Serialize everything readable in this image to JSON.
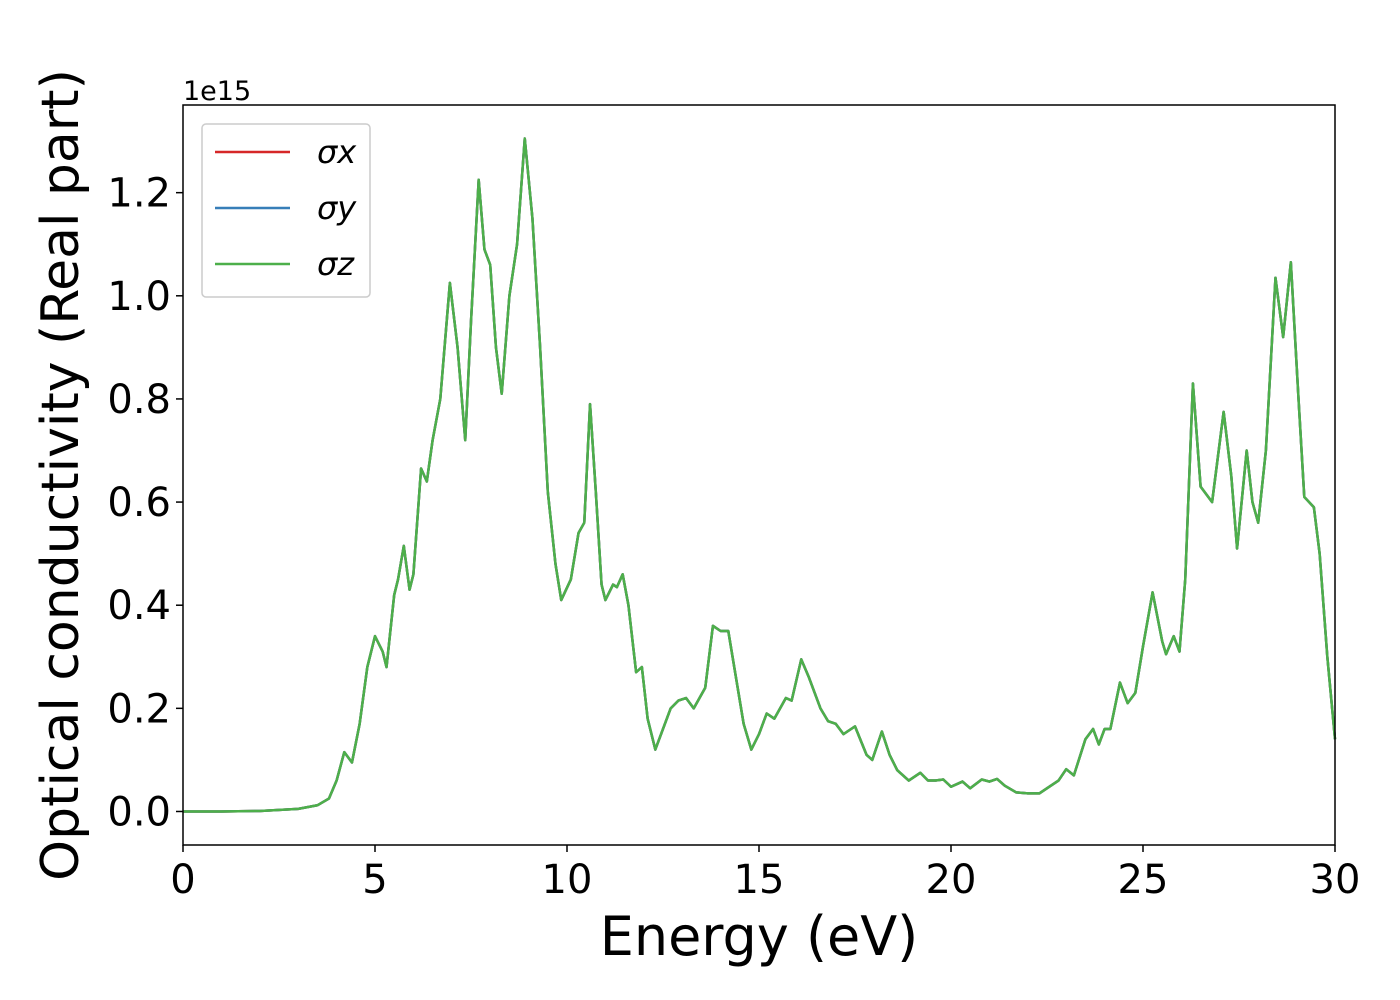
{
  "chart_data": {
    "type": "line",
    "xlabel": "Energy (eV)",
    "ylabel": "Optical conductivity (Real part)",
    "y_offset_label": "1e15",
    "xlim": [
      0,
      30
    ],
    "ylim": [
      -0.065,
      1.37
    ],
    "xticks": [
      0,
      5,
      10,
      15,
      20,
      25,
      30
    ],
    "yticks": [
      {
        "value": 0,
        "label": "0.0"
      },
      0.2,
      0.4,
      0.6,
      0.8,
      {
        "value": 1,
        "label": "1.0"
      },
      1.2
    ],
    "grid": false,
    "legend": "upper left",
    "x": [
      0,
      1,
      2,
      3,
      3.5,
      3.8,
      4.0,
      4.2,
      4.4,
      4.6,
      4.8,
      5.0,
      5.2,
      5.3,
      5.5,
      5.6,
      5.75,
      5.9,
      6.0,
      6.2,
      6.35,
      6.5,
      6.7,
      6.95,
      7.15,
      7.35,
      7.5,
      7.7,
      7.85,
      8.0,
      8.15,
      8.3,
      8.5,
      8.7,
      8.9,
      9.1,
      9.3,
      9.5,
      9.7,
      9.85,
      10.1,
      10.3,
      10.45,
      10.6,
      10.75,
      10.9,
      11.0,
      11.2,
      11.3,
      11.45,
      11.6,
      11.8,
      11.95,
      12.1,
      12.3,
      12.5,
      12.7,
      12.9,
      13.1,
      13.3,
      13.6,
      13.8,
      14.0,
      14.2,
      14.4,
      14.6,
      14.8,
      15.0,
      15.2,
      15.4,
      15.7,
      15.85,
      16.1,
      16.3,
      16.6,
      16.8,
      17.0,
      17.2,
      17.5,
      17.8,
      17.95,
      18.2,
      18.4,
      18.6,
      18.9,
      19.2,
      19.4,
      19.6,
      19.8,
      20.0,
      20.3,
      20.5,
      20.8,
      21.0,
      21.2,
      21.4,
      21.7,
      22.0,
      22.3,
      22.6,
      22.8,
      23.0,
      23.2,
      23.5,
      23.7,
      23.85,
      24.0,
      24.15,
      24.4,
      24.6,
      24.8,
      25.0,
      25.25,
      25.5,
      25.6,
      25.8,
      25.95,
      26.1,
      26.3,
      26.5,
      26.8,
      27.1,
      27.3,
      27.45,
      27.7,
      27.85,
      28.0,
      28.2,
      28.45,
      28.65,
      28.85,
      29.05,
      29.2,
      29.45,
      29.6,
      29.8,
      30.0
    ],
    "series": [
      {
        "name": "σx",
        "color": "#d62728",
        "values": [
          0,
          0,
          0.001,
          0.005,
          0.012,
          0.025,
          0.06,
          0.115,
          0.095,
          0.17,
          0.28,
          0.34,
          0.31,
          0.28,
          0.42,
          0.45,
          0.515,
          0.43,
          0.46,
          0.665,
          0.64,
          0.72,
          0.8,
          1.025,
          0.9,
          0.72,
          0.95,
          1.225,
          1.09,
          1.06,
          0.9,
          0.81,
          1.0,
          1.1,
          1.305,
          1.15,
          0.9,
          0.62,
          0.48,
          0.41,
          0.45,
          0.54,
          0.56,
          0.79,
          0.62,
          0.44,
          0.41,
          0.44,
          0.435,
          0.46,
          0.4,
          0.27,
          0.28,
          0.18,
          0.12,
          0.16,
          0.2,
          0.215,
          0.22,
          0.2,
          0.24,
          0.36,
          0.35,
          0.35,
          0.26,
          0.17,
          0.12,
          0.15,
          0.19,
          0.18,
          0.22,
          0.215,
          0.295,
          0.26,
          0.2,
          0.175,
          0.17,
          0.15,
          0.165,
          0.11,
          0.1,
          0.155,
          0.11,
          0.08,
          0.06,
          0.075,
          0.06,
          0.06,
          0.062,
          0.048,
          0.058,
          0.045,
          0.062,
          0.058,
          0.063,
          0.05,
          0.037,
          0.035,
          0.035,
          0.05,
          0.06,
          0.082,
          0.07,
          0.14,
          0.16,
          0.13,
          0.16,
          0.16,
          0.25,
          0.21,
          0.23,
          0.32,
          0.425,
          0.33,
          0.305,
          0.34,
          0.31,
          0.45,
          0.83,
          0.63,
          0.6,
          0.775,
          0.65,
          0.51,
          0.7,
          0.6,
          0.56,
          0.7,
          1.035,
          0.92,
          1.065,
          0.8,
          0.61,
          0.59,
          0.5,
          0.3,
          0.14
        ]
      },
      {
        "name": "σy",
        "color": "#377eb8",
        "values": [
          0,
          0,
          0.001,
          0.005,
          0.012,
          0.025,
          0.06,
          0.115,
          0.095,
          0.17,
          0.28,
          0.34,
          0.31,
          0.28,
          0.42,
          0.45,
          0.515,
          0.43,
          0.46,
          0.665,
          0.64,
          0.72,
          0.8,
          1.025,
          0.9,
          0.72,
          0.95,
          1.225,
          1.09,
          1.06,
          0.9,
          0.81,
          1.0,
          1.1,
          1.305,
          1.15,
          0.9,
          0.62,
          0.48,
          0.41,
          0.45,
          0.54,
          0.56,
          0.79,
          0.62,
          0.44,
          0.41,
          0.44,
          0.435,
          0.46,
          0.4,
          0.27,
          0.28,
          0.18,
          0.12,
          0.16,
          0.2,
          0.215,
          0.22,
          0.2,
          0.24,
          0.36,
          0.35,
          0.35,
          0.26,
          0.17,
          0.12,
          0.15,
          0.19,
          0.18,
          0.22,
          0.215,
          0.295,
          0.26,
          0.2,
          0.175,
          0.17,
          0.15,
          0.165,
          0.11,
          0.1,
          0.155,
          0.11,
          0.08,
          0.06,
          0.075,
          0.06,
          0.06,
          0.062,
          0.048,
          0.058,
          0.045,
          0.062,
          0.058,
          0.063,
          0.05,
          0.037,
          0.035,
          0.035,
          0.05,
          0.06,
          0.082,
          0.07,
          0.14,
          0.16,
          0.13,
          0.16,
          0.16,
          0.25,
          0.21,
          0.23,
          0.32,
          0.425,
          0.33,
          0.305,
          0.34,
          0.31,
          0.45,
          0.83,
          0.63,
          0.6,
          0.775,
          0.65,
          0.51,
          0.7,
          0.6,
          0.56,
          0.7,
          1.035,
          0.92,
          1.065,
          0.8,
          0.61,
          0.59,
          0.5,
          0.3,
          0.14
        ]
      },
      {
        "name": "σz",
        "color": "#4daf4a",
        "values": [
          0,
          0,
          0.001,
          0.005,
          0.012,
          0.025,
          0.06,
          0.115,
          0.095,
          0.17,
          0.28,
          0.34,
          0.31,
          0.28,
          0.42,
          0.45,
          0.515,
          0.43,
          0.46,
          0.665,
          0.64,
          0.72,
          0.8,
          1.025,
          0.9,
          0.72,
          0.95,
          1.225,
          1.09,
          1.06,
          0.9,
          0.81,
          1.0,
          1.1,
          1.305,
          1.15,
          0.9,
          0.62,
          0.48,
          0.41,
          0.45,
          0.54,
          0.56,
          0.79,
          0.62,
          0.44,
          0.41,
          0.44,
          0.435,
          0.46,
          0.4,
          0.27,
          0.28,
          0.18,
          0.12,
          0.16,
          0.2,
          0.215,
          0.22,
          0.2,
          0.24,
          0.36,
          0.35,
          0.35,
          0.26,
          0.17,
          0.12,
          0.15,
          0.19,
          0.18,
          0.22,
          0.215,
          0.295,
          0.26,
          0.2,
          0.175,
          0.17,
          0.15,
          0.165,
          0.11,
          0.1,
          0.155,
          0.11,
          0.08,
          0.06,
          0.075,
          0.06,
          0.06,
          0.062,
          0.048,
          0.058,
          0.045,
          0.062,
          0.058,
          0.063,
          0.05,
          0.037,
          0.035,
          0.035,
          0.05,
          0.06,
          0.082,
          0.07,
          0.14,
          0.16,
          0.13,
          0.16,
          0.16,
          0.25,
          0.21,
          0.23,
          0.32,
          0.425,
          0.33,
          0.305,
          0.34,
          0.31,
          0.45,
          0.83,
          0.63,
          0.6,
          0.775,
          0.65,
          0.51,
          0.7,
          0.6,
          0.56,
          0.7,
          1.035,
          0.92,
          1.065,
          0.8,
          0.61,
          0.59,
          0.5,
          0.3,
          0.14
        ]
      }
    ]
  }
}
